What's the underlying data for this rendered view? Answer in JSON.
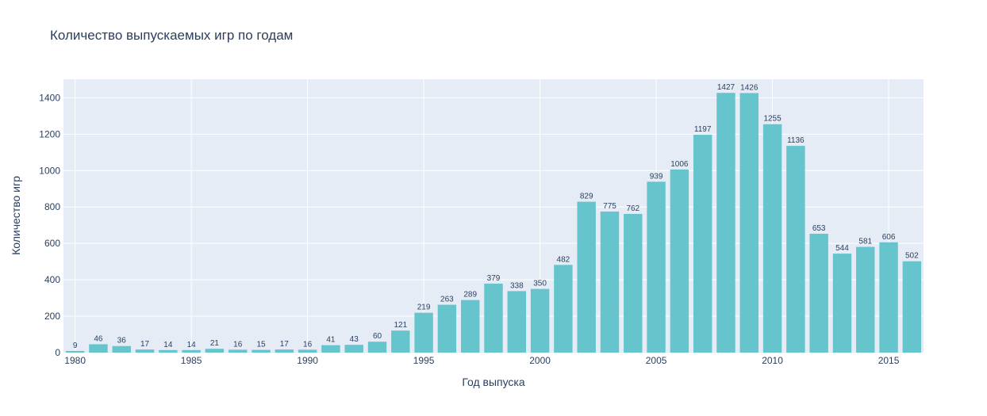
{
  "chart_data": {
    "type": "bar",
    "title": "Количество выпускаемых игр по годам",
    "xlabel": "Год выпуска",
    "ylabel": "Количество игр",
    "x": [
      1980,
      1981,
      1982,
      1983,
      1984,
      1985,
      1986,
      1987,
      1988,
      1989,
      1990,
      1991,
      1992,
      1993,
      1994,
      1995,
      1996,
      1997,
      1998,
      1999,
      2000,
      2001,
      2002,
      2003,
      2004,
      2005,
      2006,
      2007,
      2008,
      2009,
      2010,
      2011,
      2012,
      2013,
      2014,
      2015,
      2016
    ],
    "values": [
      9,
      46,
      36,
      17,
      14,
      14,
      21,
      16,
      15,
      17,
      16,
      41,
      43,
      60,
      121,
      219,
      263,
      289,
      379,
      338,
      350,
      482,
      829,
      775,
      762,
      939,
      1006,
      1197,
      1427,
      1426,
      1255,
      1136,
      653,
      544,
      581,
      606,
      502
    ],
    "xlim": [
      1979.5,
      2016.5
    ],
    "ylim": [
      0,
      1502
    ],
    "x_ticks": [
      "1980",
      "1985",
      "1990",
      "1995",
      "2000",
      "2005",
      "2010",
      "2015"
    ],
    "y_ticks": [
      "0",
      "200",
      "400",
      "600",
      "800",
      "1000",
      "1200",
      "1400"
    ],
    "grid": true,
    "colors": {
      "bar": "#66c5cc",
      "plot_bg": "#e5ecf6",
      "grid": "#ffffff",
      "text": "#2a3f5f"
    }
  }
}
